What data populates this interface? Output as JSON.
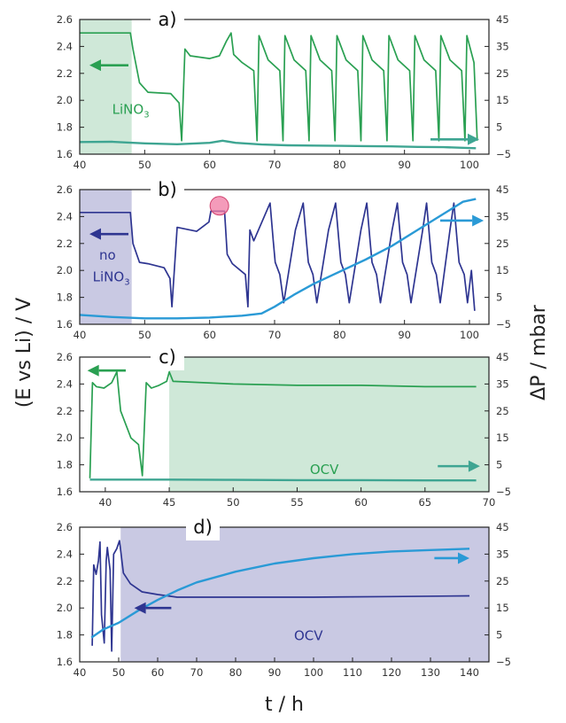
{
  "figure": {
    "ylabel_left": "(E vs Li) / V",
    "ylabel_right": "ΔP / mbar",
    "xlabel": "t / h"
  },
  "chart_data": [
    {
      "id": "a",
      "type": "line",
      "panel_label": "a)",
      "xlim": [
        40,
        103
      ],
      "xticks": [
        40,
        50,
        60,
        70,
        80,
        90,
        100
      ],
      "ylim": [
        1.6,
        2.6
      ],
      "yticks": [
        1.6,
        1.8,
        2.0,
        2.2,
        2.4,
        2.6
      ],
      "y2lim": [
        -5,
        45
      ],
      "y2ticks": [
        -5,
        5,
        15,
        25,
        35,
        45
      ],
      "shaded": {
        "from": 40,
        "to": 48,
        "color": "#cfe8d8"
      },
      "annotations": [
        {
          "text": "LiNO",
          "sub": "3",
          "x": 45,
          "y": 1.9,
          "color": "#2aa052"
        }
      ],
      "arrows": [
        {
          "axis": "left",
          "x1": 47.5,
          "x2": 41.5,
          "y": 2.26,
          "color": "#2aa052"
        },
        {
          "axis": "right",
          "x1": 94,
          "x2": 101.5,
          "y": 0.5,
          "color": "#3ea592"
        }
      ],
      "series": [
        {
          "axis": "left",
          "color": "#2aa052",
          "x": [
            40,
            47.8,
            48.2,
            49.2,
            50.5,
            54,
            55.3,
            55.7,
            56.2,
            57,
            60,
            61.5,
            62.6,
            63.3,
            63.7,
            65,
            66.8,
            67.3,
            67.6,
            69,
            70.8,
            71.3,
            71.6,
            73,
            74.8,
            75.3,
            75.6,
            77,
            78.8,
            79.3,
            79.6,
            81,
            82.8,
            83.3,
            83.6,
            85,
            86.8,
            87.3,
            87.6,
            89,
            90.8,
            91.3,
            91.6,
            93,
            94.8,
            95.3,
            95.6,
            97,
            98.8,
            99.3,
            99.6,
            100.7,
            101.2
          ],
          "y": [
            2.5,
            2.5,
            2.38,
            2.13,
            2.06,
            2.05,
            1.98,
            1.7,
            2.38,
            2.33,
            2.31,
            2.33,
            2.44,
            2.5,
            2.34,
            2.28,
            2.22,
            1.7,
            2.48,
            2.3,
            2.22,
            1.7,
            2.48,
            2.3,
            2.22,
            1.7,
            2.48,
            2.3,
            2.22,
            1.7,
            2.48,
            2.3,
            2.22,
            1.7,
            2.48,
            2.3,
            2.22,
            1.7,
            2.48,
            2.3,
            2.22,
            1.7,
            2.48,
            2.3,
            2.22,
            1.7,
            2.48,
            2.3,
            2.22,
            1.7,
            2.48,
            2.28,
            1.7
          ]
        },
        {
          "axis": "right",
          "color": "#3ea592",
          "x": [
            40,
            45,
            50,
            55,
            60,
            62,
            64,
            68,
            72,
            76,
            80,
            84,
            88,
            92,
            96,
            101
          ],
          "y": [
            -0.5,
            -0.4,
            -1,
            -1.3,
            -0.8,
            0,
            -0.8,
            -1.4,
            -1.7,
            -1.8,
            -1.9,
            -2,
            -2.1,
            -2.3,
            -2.4,
            -2.8
          ]
        }
      ]
    },
    {
      "id": "b",
      "type": "line",
      "panel_label": "b)",
      "xlim": [
        40,
        103
      ],
      "xticks": [
        40,
        50,
        60,
        70,
        80,
        90,
        100
      ],
      "ylim": [
        1.6,
        2.6
      ],
      "yticks": [
        1.6,
        1.8,
        2.0,
        2.2,
        2.4,
        2.6
      ],
      "y2lim": [
        -5,
        45
      ],
      "y2ticks": [
        -5,
        5,
        15,
        25,
        35,
        45
      ],
      "shaded": {
        "from": 40,
        "to": 48,
        "color": "#c9c9e3"
      },
      "annotations": [
        {
          "text": "no",
          "x": 43,
          "y": 2.08,
          "color": "#2e3591"
        },
        {
          "text": "LiNO",
          "sub": "3",
          "x": 42,
          "y": 1.92,
          "color": "#2e3591"
        }
      ],
      "arrows": [
        {
          "axis": "left",
          "x1": 47.5,
          "x2": 41.5,
          "y": 2.27,
          "color": "#2e3591"
        },
        {
          "axis": "right",
          "x1": 95.5,
          "x2": 102.2,
          "y": 33.5,
          "color": "#2a9ad6"
        }
      ],
      "highlight": {
        "x": 61.5,
        "y": 2.48,
        "color": "#f07aa3"
      },
      "series": [
        {
          "axis": "left",
          "color": "#2e3591",
          "x": [
            40,
            47.8,
            48.2,
            49.2,
            50.5,
            53,
            53.9,
            54.2,
            55,
            58,
            59.9,
            60.2,
            61.4,
            62.3,
            62.7,
            63.5,
            65.5,
            65.9,
            66.2,
            66.8,
            69.3,
            69.8,
            70.1,
            70.8,
            71.4,
            73.2,
            74.4,
            74.9,
            75.2,
            75.9,
            76.5,
            78.3,
            79.4,
            79.9,
            80.2,
            80.9,
            81.5,
            83.3,
            84.2,
            84.7,
            85.0,
            85.7,
            86.3,
            88.1,
            88.9,
            89.4,
            89.7,
            90.4,
            91.0,
            92.8,
            93.4,
            93.9,
            94.2,
            94.9,
            95.5,
            97.0,
            97.6,
            98.1,
            98.4,
            99.2,
            99.7,
            100.3,
            100.8
          ],
          "y": [
            2.43,
            2.43,
            2.2,
            2.06,
            2.05,
            2.02,
            1.94,
            1.73,
            2.32,
            2.29,
            2.36,
            2.44,
            2.44,
            2.44,
            2.12,
            2.05,
            1.97,
            1.73,
            2.3,
            2.22,
            2.5,
            2.22,
            2.06,
            1.97,
            1.76,
            2.3,
            2.5,
            2.22,
            2.06,
            1.97,
            1.76,
            2.3,
            2.5,
            2.22,
            2.06,
            1.97,
            1.76,
            2.3,
            2.5,
            2.22,
            2.06,
            1.97,
            1.76,
            2.3,
            2.5,
            2.22,
            2.06,
            1.97,
            1.76,
            2.3,
            2.5,
            2.22,
            2.06,
            1.97,
            1.76,
            2.3,
            2.5,
            2.22,
            2.06,
            1.97,
            1.76,
            2.0,
            1.7
          ]
        },
        {
          "axis": "right",
          "color": "#2a9ad6",
          "x": [
            40,
            45,
            50,
            55,
            60,
            65,
            68,
            70,
            73,
            76,
            80,
            84,
            88,
            92,
            96,
            99,
            101
          ],
          "y": [
            -1.5,
            -2.3,
            -2.8,
            -2.8,
            -2.5,
            -1.8,
            -1,
            1.5,
            6,
            10,
            14.5,
            19,
            24,
            30,
            36,
            40.5,
            41.5
          ]
        }
      ]
    },
    {
      "id": "c",
      "type": "line",
      "panel_label": "c)",
      "xlim": [
        38,
        70
      ],
      "xticks": [
        40,
        45,
        50,
        55,
        60,
        65,
        70
      ],
      "ylim": [
        1.6,
        2.6
      ],
      "yticks": [
        1.6,
        1.8,
        2.0,
        2.2,
        2.4,
        2.6
      ],
      "y2lim": [
        -5,
        45
      ],
      "y2ticks": [
        -5,
        5,
        15,
        25,
        35,
        45
      ],
      "shaded": {
        "from": 45,
        "to": 70,
        "color": "#cfe8d8"
      },
      "annotations": [
        {
          "text": "OCV",
          "x": 56,
          "y": 1.73,
          "color": "#2aa052"
        }
      ],
      "arrows": [
        {
          "axis": "left",
          "x1": 41.6,
          "x2": 38.6,
          "y": 2.5,
          "color": "#2aa052"
        },
        {
          "axis": "right",
          "x1": 66,
          "x2": 69.3,
          "y": 4.5,
          "color": "#3ea592"
        }
      ],
      "series": [
        {
          "axis": "left",
          "color": "#2aa052",
          "x": [
            38.8,
            39.0,
            39.3,
            39.9,
            40.5,
            40.9,
            41.2,
            42.0,
            42.6,
            42.9,
            43.2,
            43.6,
            44.2,
            44.8,
            45.0,
            45.3,
            50,
            55,
            60,
            65,
            69
          ],
          "y": [
            1.7,
            2.41,
            2.38,
            2.37,
            2.41,
            2.49,
            2.2,
            2.0,
            1.95,
            1.72,
            2.41,
            2.37,
            2.39,
            2.42,
            2.49,
            2.42,
            2.4,
            2.39,
            2.39,
            2.38,
            2.38
          ]
        },
        {
          "axis": "right",
          "color": "#3ea592",
          "x": [
            38.8,
            45,
            50,
            55,
            60,
            65,
            69
          ],
          "y": [
            -0.5,
            -0.5,
            -0.6,
            -0.7,
            -0.7,
            -0.8,
            -0.8
          ]
        }
      ]
    },
    {
      "id": "d",
      "type": "line",
      "panel_label": "d)",
      "xlim": [
        40,
        145
      ],
      "xticks": [
        40,
        50,
        60,
        70,
        80,
        90,
        100,
        110,
        120,
        130,
        140
      ],
      "ylim": [
        1.6,
        2.6
      ],
      "yticks": [
        1.6,
        1.8,
        2.0,
        2.2,
        2.4,
        2.6
      ],
      "y2lim": [
        -5,
        45
      ],
      "y2ticks": [
        -5,
        5,
        15,
        25,
        35,
        45
      ],
      "shaded": {
        "from": 50.5,
        "to": 145,
        "color": "#c9c9e3"
      },
      "annotations": [
        {
          "text": "OCV",
          "x": 95,
          "y": 1.76,
          "color": "#2e3591"
        }
      ],
      "arrows": [
        {
          "axis": "left",
          "x1": 63.5,
          "x2": 54,
          "y": 2.0,
          "color": "#2e3591"
        },
        {
          "axis": "right",
          "x1": 131,
          "x2": 140,
          "y": 33.5,
          "color": "#2a9ad6"
        }
      ],
      "series": [
        {
          "axis": "left",
          "color": "#2e3591",
          "x": [
            43.2,
            43.6,
            44.2,
            44.8,
            45.2,
            45.6,
            46.3,
            46.8,
            47.1,
            47.8,
            48.2,
            48.7,
            49.5,
            50.2,
            51.2,
            53,
            56,
            60,
            65,
            70,
            80,
            100,
            120,
            140
          ],
          "y": [
            1.72,
            2.32,
            2.25,
            2.35,
            2.49,
            1.95,
            1.74,
            2.35,
            2.45,
            2.28,
            1.68,
            2.4,
            2.44,
            2.5,
            2.26,
            2.18,
            2.12,
            2.1,
            2.08,
            2.08,
            2.08,
            2.08,
            2.085,
            2.09
          ]
        },
        {
          "axis": "right",
          "color": "#2a9ad6",
          "x": [
            43,
            46,
            50,
            55,
            60,
            65,
            70,
            80,
            90,
            100,
            110,
            120,
            130,
            140
          ],
          "y": [
            4,
            7,
            9.5,
            14,
            18,
            21.5,
            24.5,
            28.5,
            31.5,
            33.5,
            35,
            36,
            36.5,
            37
          ]
        }
      ]
    }
  ]
}
